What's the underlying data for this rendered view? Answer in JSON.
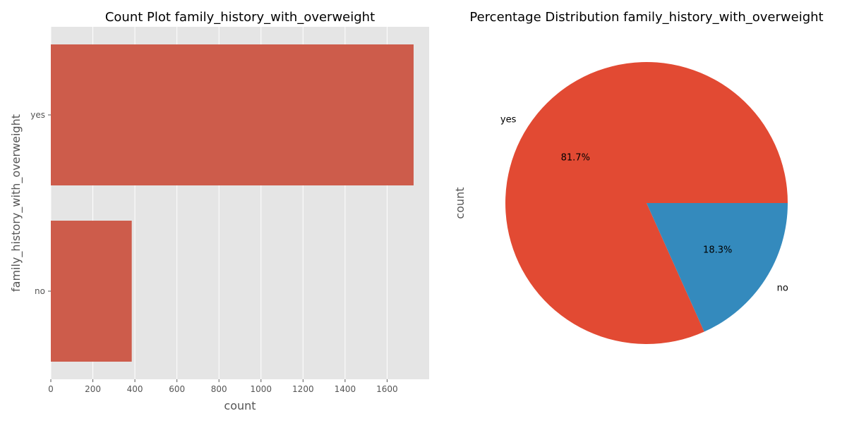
{
  "chart_data": [
    {
      "type": "bar",
      "orientation": "horizontal",
      "title": "Count Plot family_history_with_overweight",
      "xlabel": "count",
      "ylabel": "family_history_with_overweight",
      "categories": [
        "yes",
        "no"
      ],
      "values": [
        1726,
        385
      ],
      "xlim": [
        0,
        1800
      ],
      "xticks": [
        0,
        200,
        400,
        600,
        800,
        1000,
        1200,
        1400,
        1600
      ],
      "grid": true,
      "colors": {
        "bar": "#cd5c4b",
        "background": "#e5e5e5",
        "grid": "#ffffff"
      }
    },
    {
      "type": "pie",
      "title": "Percentage Distribution family_history_with_overweight",
      "ylabel": "count",
      "labels": [
        "yes",
        "no"
      ],
      "values": [
        81.7,
        18.3
      ],
      "pct_labels": [
        "81.7%",
        "18.3%"
      ],
      "colors": [
        "#e24a33",
        "#348abd"
      ]
    }
  ]
}
